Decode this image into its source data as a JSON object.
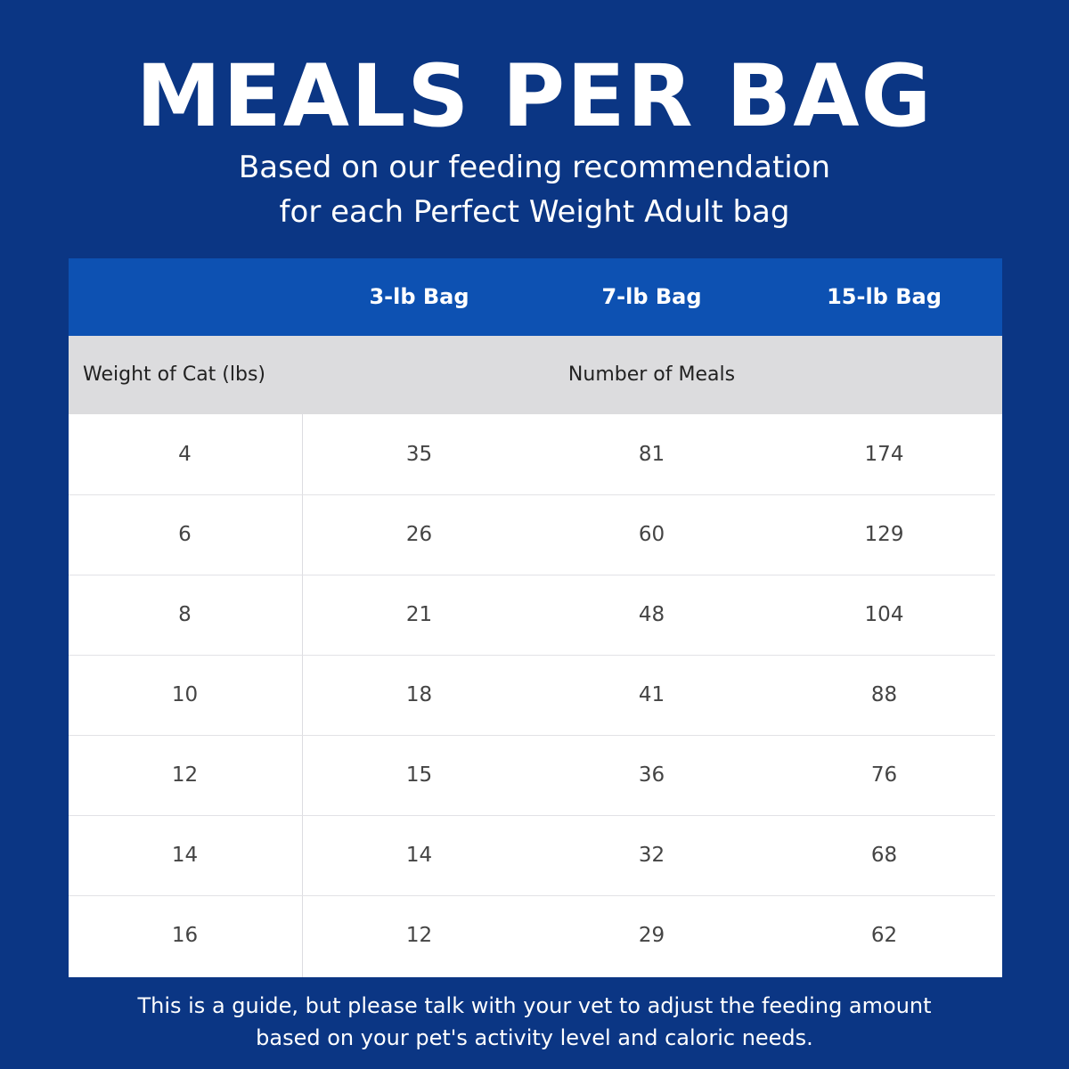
{
  "header": {
    "title": "MEALS PER BAG",
    "subtitle": [
      "Based on our feeding recommendation",
      "for each Perfect Weight Adult bag"
    ]
  },
  "table": {
    "columns": [
      "3-lb Bag",
      "7-lb Bag",
      "15-lb Bag"
    ],
    "weight_label": "Weight of Cat (lbs)",
    "meals_label": "Number of Meals",
    "rows": [
      [
        4,
        35,
        81,
        174
      ],
      [
        6,
        26,
        60,
        129
      ],
      [
        8,
        21,
        48,
        104
      ],
      [
        10,
        18,
        41,
        88
      ],
      [
        12,
        15,
        36,
        76
      ],
      [
        14,
        14,
        32,
        68
      ],
      [
        16,
        12,
        29,
        62
      ]
    ]
  },
  "footer": [
    "This is a guide, but please talk with your vet to adjust the feeding amount",
    "based on your pet's activity level and caloric needs."
  ]
}
